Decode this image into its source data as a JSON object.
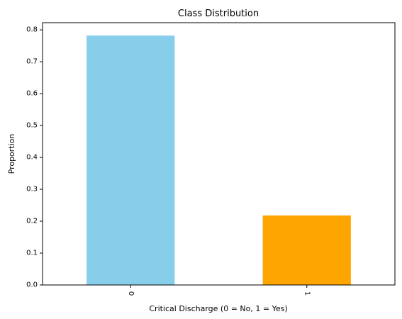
{
  "chart_data": {
    "type": "bar",
    "title": "Class Distribution",
    "xlabel": "Critical Discharge (0 = No, 1 = Yes)",
    "ylabel": "Proportion",
    "categories": [
      "0",
      "1"
    ],
    "values": [
      0.782,
      0.218
    ],
    "bar_colors": [
      "#87CEEB",
      "#FFA500"
    ],
    "ylim": [
      0,
      0.8225
    ],
    "yticks": [
      "0.0",
      "0.1",
      "0.2",
      "0.3",
      "0.4",
      "0.5",
      "0.6",
      "0.7",
      "0.8"
    ],
    "grid": false,
    "legend": "none"
  }
}
